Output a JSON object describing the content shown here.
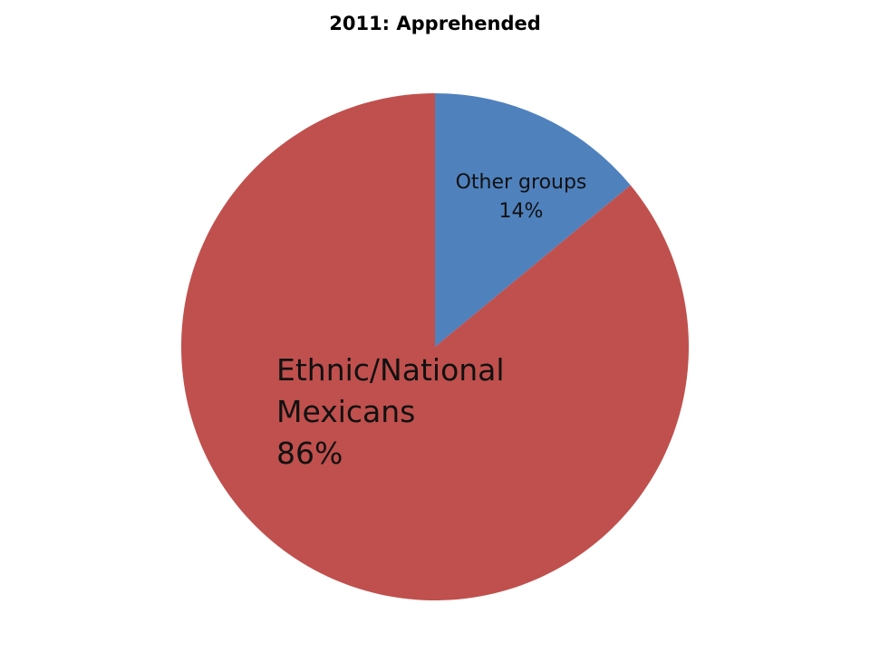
{
  "chart_data": {
    "type": "pie",
    "title": "2011: Apprehended",
    "legend": "none",
    "slices": [
      {
        "label_lines": [
          "Other groups",
          "14%"
        ],
        "value": 14,
        "color": "#4F81BD"
      },
      {
        "label_lines": [
          "Ethnic/National",
          "Mexicans",
          "86%"
        ],
        "value": 86,
        "color": "#C0504D"
      }
    ]
  }
}
